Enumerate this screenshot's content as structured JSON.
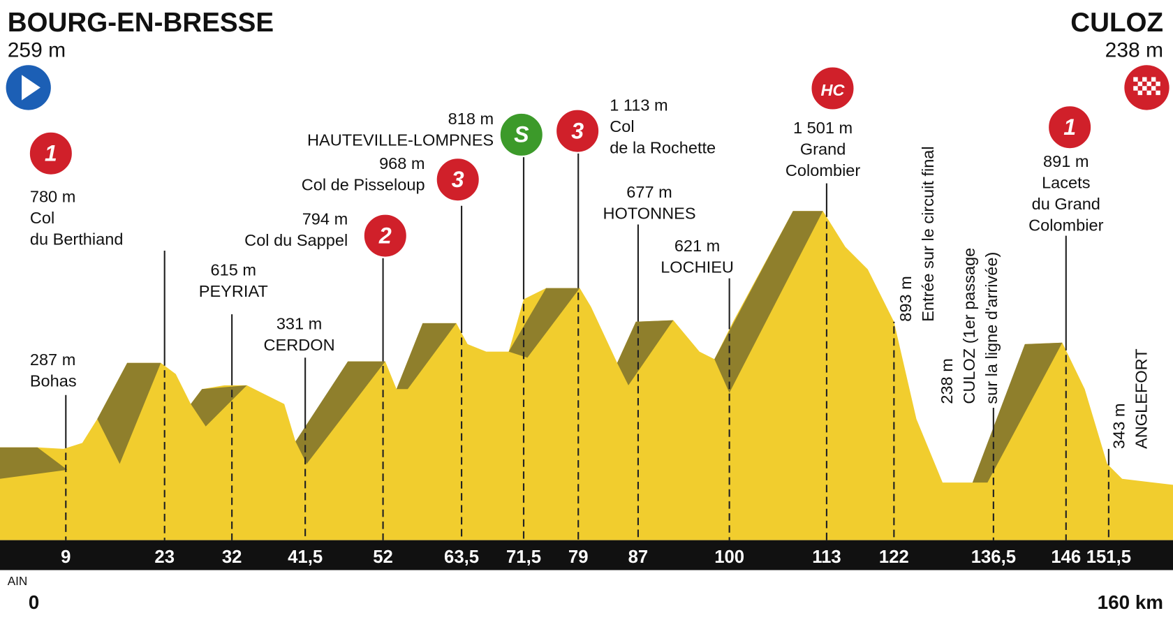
{
  "start": {
    "name": "BOURG-EN-BRESSE",
    "altitude": "259 m"
  },
  "finish": {
    "name": "CULOZ",
    "altitude": "238 m"
  },
  "region": "AIN",
  "distance_start": "0",
  "distance_end": "160 km",
  "waypoints": [
    {
      "km": "9",
      "altitude": "287 m",
      "name": [
        "Bohas"
      ]
    },
    {
      "km": "23",
      "altitude": "780 m",
      "name": [
        "Col",
        "du Berthiand"
      ],
      "category": "1"
    },
    {
      "km": "32",
      "altitude": "615 m",
      "name": [
        "PEYRIAT"
      ]
    },
    {
      "km": "41,5",
      "altitude": "331 m",
      "name": [
        "CERDON"
      ]
    },
    {
      "km": "52",
      "altitude": "794 m",
      "name": [
        "Col du Sappel"
      ],
      "category": "2"
    },
    {
      "km": "63,5",
      "altitude": "968 m",
      "name": [
        "Col de Pisseloup"
      ],
      "category": "3"
    },
    {
      "km": "71,5",
      "altitude": "818 m",
      "name": [
        "HAUTEVILLE-LOMPNES"
      ],
      "category": "S"
    },
    {
      "km": "79",
      "altitude": "1 113 m",
      "name": [
        "Col",
        "de la Rochette"
      ],
      "category": "3"
    },
    {
      "km": "87",
      "altitude": "677 m",
      "name": [
        "HOTONNES"
      ]
    },
    {
      "km": "100",
      "altitude": "621 m",
      "name": [
        "LOCHIEU"
      ]
    },
    {
      "km": "113",
      "altitude": "1 501 m",
      "name": [
        "Grand",
        "Colombier"
      ],
      "category": "HC"
    },
    {
      "km": "122",
      "altitude": "893 m",
      "name": [
        "Entrée sur le circuit final"
      ]
    },
    {
      "km": "136,5",
      "altitude": "238 m",
      "name": [
        "CULOZ (1er passage",
        "sur la ligne d'arrivée)"
      ]
    },
    {
      "km": "146",
      "altitude": "891 m",
      "name": [
        "Lacets",
        "du Grand",
        "Colombier"
      ],
      "category": "1"
    },
    {
      "km": "151,5",
      "altitude": "343 m",
      "name": [
        "ANGLEFORT"
      ]
    }
  ]
}
